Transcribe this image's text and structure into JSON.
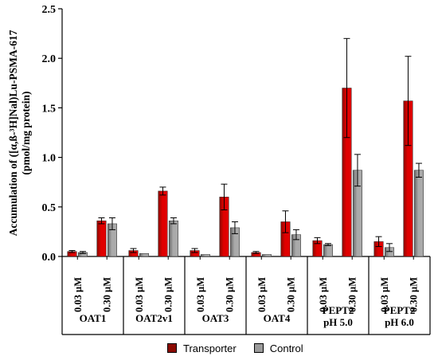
{
  "chart_data": {
    "type": "bar",
    "ylabel_line1": "Accumulation of ([α,ß-³H]Nal)Lu-PSMA-617",
    "ylabel_line2": "(pmol/mg protein)",
    "ylim": [
      0,
      2.5
    ],
    "yticks": [
      "0.0",
      "0.5",
      "1.0",
      "1.5",
      "2.0",
      "2.5"
    ],
    "grid": false,
    "legend_position": "bottom-center",
    "colors": {
      "transporter": "#e00000",
      "transporter_dark": "#8b0a00",
      "control": "#aaaaaa",
      "control_dark": "#666666"
    },
    "groups": [
      {
        "name_lines": [
          "OAT1"
        ],
        "concentrations": [
          "0.03 µM",
          "0.30 µM"
        ],
        "transporter": [
          0.05,
          0.36
        ],
        "transporter_err": [
          0.01,
          0.03
        ],
        "control": [
          0.04,
          0.33
        ],
        "control_err": [
          0.01,
          0.06
        ]
      },
      {
        "name_lines": [
          "OAT2v1"
        ],
        "concentrations": [
          "0.03 µM",
          "0.30 µM"
        ],
        "transporter": [
          0.06,
          0.66
        ],
        "transporter_err": [
          0.02,
          0.04
        ],
        "control": [
          0.03,
          0.36
        ],
        "control_err": [
          0.0,
          0.03
        ]
      },
      {
        "name_lines": [
          "OAT3"
        ],
        "concentrations": [
          "0.03 µM",
          "0.30 µM"
        ],
        "transporter": [
          0.06,
          0.6
        ],
        "transporter_err": [
          0.02,
          0.13
        ],
        "control": [
          0.02,
          0.29
        ],
        "control_err": [
          0.0,
          0.06
        ]
      },
      {
        "name_lines": [
          "OAT4"
        ],
        "concentrations": [
          "0.03 µM",
          "0.30 µM"
        ],
        "transporter": [
          0.04,
          0.35
        ],
        "transporter_err": [
          0.01,
          0.11
        ],
        "control": [
          0.02,
          0.22
        ],
        "control_err": [
          0.0,
          0.05
        ]
      },
      {
        "name_lines": [
          "PEPT2",
          "pH 5.0"
        ],
        "concentrations": [
          "0.03 µM",
          "0.30 µM"
        ],
        "transporter": [
          0.16,
          1.7
        ],
        "transporter_err": [
          0.03,
          0.5
        ],
        "control": [
          0.12,
          0.87
        ],
        "control_err": [
          0.01,
          0.16
        ]
      },
      {
        "name_lines": [
          "PEPT2",
          "pH 6.0"
        ],
        "concentrations": [
          "0.03 µM",
          "0.30 µM"
        ],
        "transporter": [
          0.15,
          1.57
        ],
        "transporter_err": [
          0.05,
          0.45
        ],
        "control": [
          0.09,
          0.87
        ],
        "control_err": [
          0.04,
          0.07
        ]
      }
    ],
    "legend": {
      "transporter_label": "Transporter",
      "control_label": "Control"
    }
  }
}
